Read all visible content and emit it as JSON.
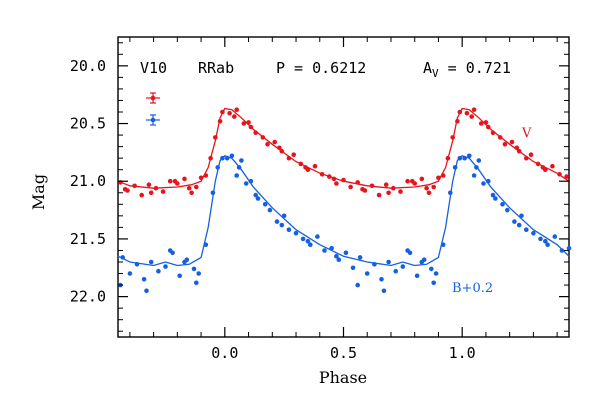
{
  "chart_data": {
    "type": "scatter",
    "xlabel": "Phase",
    "ylabel": "Mag",
    "xlim": [
      -0.45,
      1.45
    ],
    "ylim": [
      22.35,
      19.75
    ],
    "y_inverted": true,
    "xticks": [
      0.0,
      0.5,
      1.0
    ],
    "xtick_labels": [
      "0.0",
      "0.5",
      "1.0"
    ],
    "yticks": [
      20.0,
      20.5,
      21.0,
      21.5,
      22.0
    ],
    "ytick_labels": [
      "20.0",
      "20.5",
      "21.0",
      "21.5",
      "22.0"
    ],
    "header": {
      "star": "V10",
      "type": "RRab",
      "period_label": "P = 0.6212",
      "amp_main": "A",
      "amp_sub": "V",
      "amp_value": " = 0.721"
    },
    "legend_placement": "top-left",
    "series": [
      {
        "name": "V",
        "color": "#e8141c",
        "light_curve": {
          "phase": [
            0.0,
            0.03,
            0.07,
            0.12,
            0.2,
            0.3,
            0.4,
            0.5,
            0.6,
            0.7,
            0.8,
            0.86,
            0.9,
            0.93,
            0.96,
            0.98,
            1.0
          ],
          "mag": [
            20.37,
            20.38,
            20.45,
            20.55,
            20.68,
            20.83,
            20.93,
            21.0,
            21.04,
            21.06,
            21.05,
            21.03,
            21.0,
            20.88,
            20.65,
            20.45,
            20.37
          ]
        },
        "points": {
          "phase": [
            0.02,
            0.05,
            0.08,
            0.1,
            0.13,
            0.16,
            0.18,
            0.21,
            0.24,
            0.27,
            0.29,
            0.32,
            0.35,
            0.38,
            0.41,
            0.44,
            0.47,
            0.5,
            0.53,
            0.56,
            0.59,
            0.62,
            0.65,
            0.68,
            0.71,
            0.74,
            0.77,
            0.8,
            0.83,
            0.86,
            0.88,
            0.9,
            0.92,
            0.94,
            0.96,
            0.98,
            0.99,
            0.04,
            0.11,
            0.23,
            0.34,
            0.46,
            0.58,
            0.69,
            0.79,
            0.85
          ],
          "mag": [
            20.41,
            20.38,
            20.5,
            20.49,
            20.58,
            20.62,
            20.68,
            20.66,
            20.74,
            20.8,
            20.77,
            20.85,
            20.9,
            20.87,
            20.94,
            20.96,
            21.02,
            20.99,
            21.05,
            21.01,
            21.08,
            21.04,
            21.12,
            21.03,
            21.06,
            21.09,
            21.0,
            21.02,
            20.98,
            21.1,
            21.05,
            20.97,
            20.95,
            20.8,
            20.62,
            20.48,
            20.4,
            20.44,
            20.53,
            20.71,
            20.88,
            20.98,
            21.07,
            21.1,
            21.0,
            21.06
          ]
        },
        "label": "V",
        "mean_errorbar": 0.05
      },
      {
        "name": "B+0.2",
        "color": "#1560e0",
        "light_curve": {
          "phase": [
            0.0,
            0.03,
            0.07,
            0.12,
            0.2,
            0.3,
            0.4,
            0.5,
            0.6,
            0.7,
            0.75,
            0.8,
            0.85,
            0.9,
            0.93,
            0.96,
            0.98,
            1.0
          ],
          "mag": [
            20.78,
            20.8,
            20.9,
            21.05,
            21.23,
            21.42,
            21.55,
            21.65,
            21.7,
            21.73,
            21.7,
            21.73,
            21.72,
            21.66,
            21.4,
            21.0,
            20.82,
            20.78
          ]
        },
        "points": {
          "phase": [
            0.01,
            0.03,
            0.05,
            0.07,
            0.09,
            0.11,
            0.14,
            0.17,
            0.19,
            0.22,
            0.25,
            0.27,
            0.3,
            0.33,
            0.36,
            0.39,
            0.42,
            0.45,
            0.48,
            0.51,
            0.54,
            0.57,
            0.6,
            0.63,
            0.66,
            0.69,
            0.72,
            0.75,
            0.78,
            0.81,
            0.84,
            0.87,
            0.89,
            0.92,
            0.95,
            0.97,
            0.99,
            0.06,
            0.13,
            0.24,
            0.35,
            0.47,
            0.56,
            0.67,
            0.77,
            0.83,
            0.88
          ],
          "mag": [
            20.8,
            20.78,
            20.95,
            20.82,
            21.02,
            21.0,
            21.15,
            21.2,
            21.25,
            21.35,
            21.3,
            21.42,
            21.45,
            21.5,
            21.55,
            21.48,
            21.6,
            21.58,
            21.68,
            21.62,
            21.75,
            21.66,
            21.8,
            21.72,
            21.85,
            21.7,
            21.78,
            21.74,
            21.62,
            21.82,
            21.68,
            21.76,
            21.8,
            21.55,
            21.1,
            20.88,
            20.8,
            20.88,
            21.12,
            21.38,
            21.52,
            21.65,
            21.9,
            21.95,
            21.6,
            21.7,
            21.88
          ]
        },
        "label": "B+0.2",
        "mean_errorbar": 0.05
      }
    ]
  }
}
